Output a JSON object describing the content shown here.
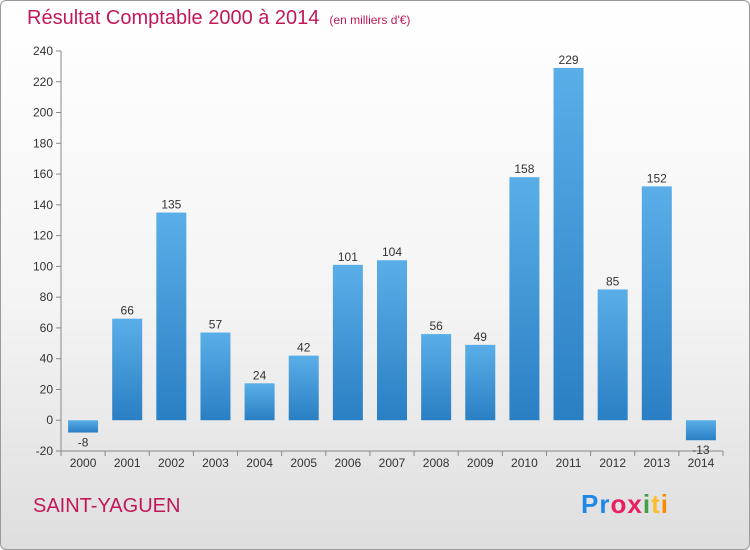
{
  "title": "Résultat Comptable 2000 à 2014",
  "subtitle": "(en milliers d'€)",
  "commune": "SAINT-YAGUEN",
  "logo": {
    "letters": [
      "P",
      "r",
      "o",
      "x",
      "i",
      "t",
      "i"
    ],
    "colors": [
      "#1e88e5",
      "#1e88e5",
      "#e91e63",
      "#e91e63",
      "#43a047",
      "#fbc02d",
      "#fb8c00"
    ]
  },
  "colors": {
    "bar_top": "#5aaee8",
    "bar_bottom": "#2a7fc4",
    "title": "#c2185b"
  },
  "chart_data": {
    "type": "bar",
    "categories": [
      "2000",
      "2001",
      "2002",
      "2003",
      "2004",
      "2005",
      "2006",
      "2007",
      "2008",
      "2009",
      "2010",
      "2011",
      "2012",
      "2013",
      "2014"
    ],
    "values": [
      -8,
      66,
      135,
      57,
      24,
      42,
      101,
      104,
      56,
      49,
      158,
      229,
      85,
      152,
      -13
    ],
    "ylim": [
      -20,
      240
    ],
    "yticks": [
      -20,
      0,
      20,
      40,
      60,
      80,
      100,
      120,
      140,
      160,
      180,
      200,
      220,
      240
    ],
    "grid": false
  }
}
